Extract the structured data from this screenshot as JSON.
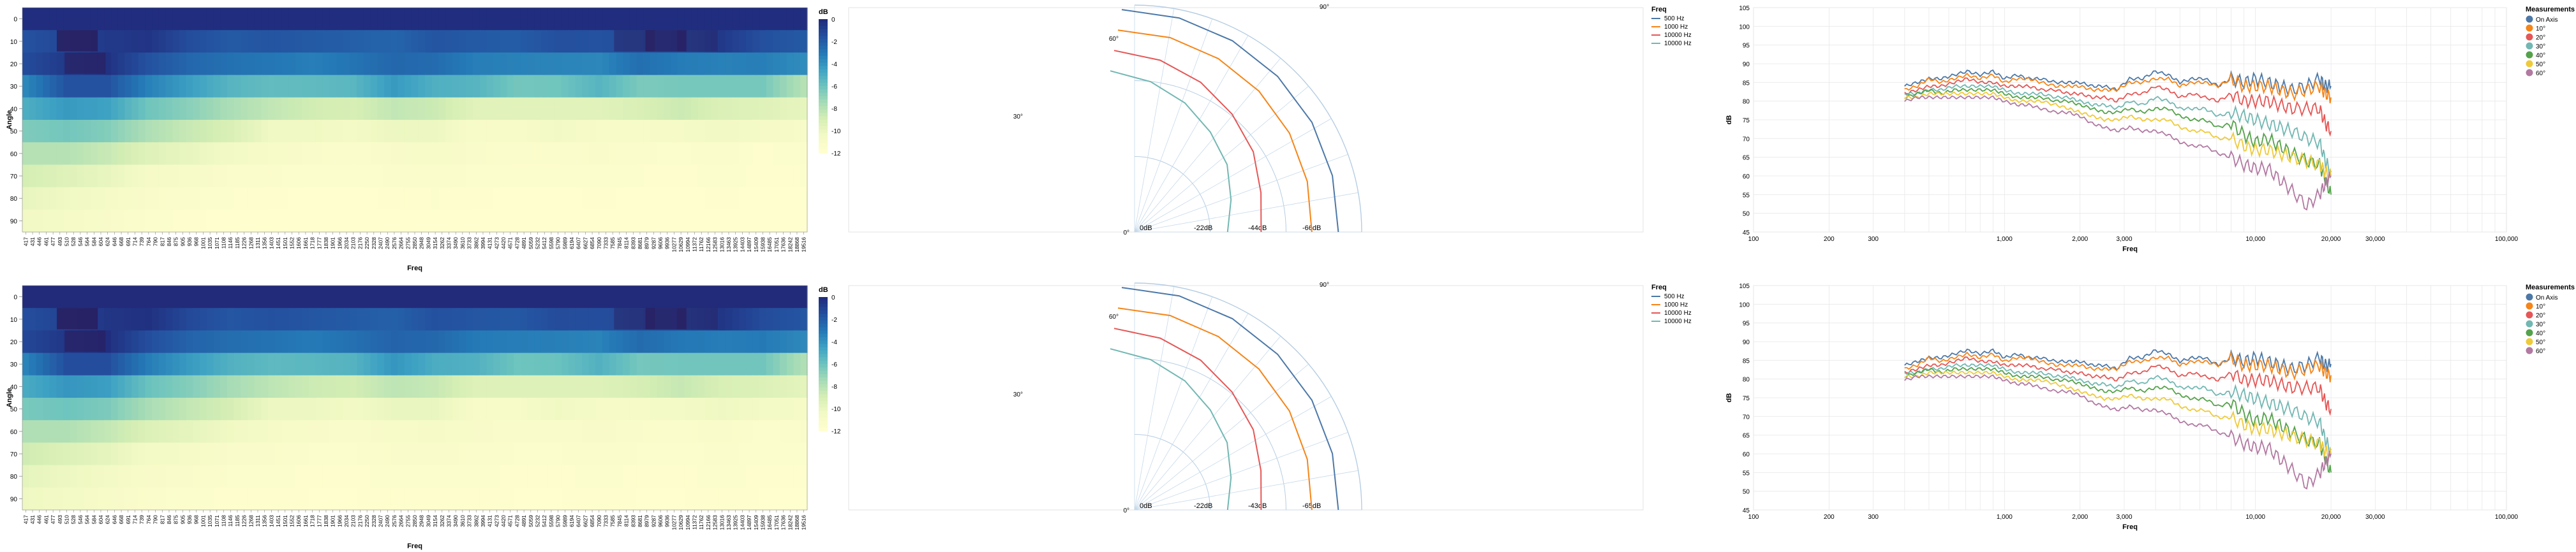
{
  "colors": {
    "heat": [
      "#fffecf",
      "#f2f9c4",
      "#d5eeb4",
      "#a5dbb6",
      "#6cc3be",
      "#3ea2c3",
      "#2479b6",
      "#2452a0",
      "#212d7e",
      "#2a1a5a"
    ],
    "series": [
      "#4c78a8",
      "#f58518",
      "#e45756",
      "#72b7b2",
      "#54a24b",
      "#eeca3b",
      "#b279a2"
    ]
  },
  "charts": [
    {
      "heatmap": {
        "ylabel": "Angle",
        "xlabel": "Freq",
        "y_ticks": [
          "0",
          "10",
          "20",
          "30",
          "40",
          "50",
          "60",
          "70",
          "80",
          "90"
        ],
        "legend_title": "dB",
        "legend_ticks": [
          "0",
          "-2",
          "-4",
          "-6",
          "-8",
          "-10",
          "-12"
        ]
      },
      "polar": {
        "angle_labels": [
          "0°",
          "30°",
          "60°",
          "90°"
        ],
        "radius_labels": [
          "0dB",
          "-22dB",
          "-44dB",
          "-66dB"
        ],
        "legend_title": "Freq",
        "legend_items": [
          "500 Hz",
          "1000 Hz",
          "10000 Hz",
          "10000 Hz"
        ]
      },
      "lines": {
        "ylabel": "dB",
        "xlabel": "Freq",
        "y_ticks": [
          "45",
          "50",
          "55",
          "60",
          "65",
          "70",
          "75",
          "80",
          "85",
          "90",
          "95",
          "100",
          "105"
        ],
        "x_ticks": [
          "100",
          "200",
          "300",
          "1,000",
          "2,000",
          "3,000",
          "10,000",
          "20,000",
          "30,000",
          "100,000"
        ],
        "legend_title": "Measurements",
        "legend_items": [
          "On Axis",
          "10°",
          "20°",
          "30°",
          "40°",
          "50°",
          "60°"
        ]
      }
    },
    {
      "heatmap": {
        "ylabel": "Angle",
        "xlabel": "Freq",
        "y_ticks": [
          "0",
          "10",
          "20",
          "30",
          "40",
          "50",
          "60",
          "70",
          "80",
          "90"
        ],
        "legend_title": "dB",
        "legend_ticks": [
          "0",
          "-2",
          "-4",
          "-6",
          "-8",
          "-10",
          "-12"
        ]
      },
      "polar": {
        "angle_labels": [
          "0°",
          "30°",
          "60°",
          "90°"
        ],
        "radius_labels": [
          "0dB",
          "-22dB",
          "-43dB",
          "-65dB"
        ],
        "legend_title": "Freq",
        "legend_items": [
          "500 Hz",
          "1000 Hz",
          "10000 Hz",
          "10000 Hz"
        ]
      },
      "lines": {
        "ylabel": "dB",
        "xlabel": "Freq",
        "y_ticks": [
          "45",
          "50",
          "55",
          "60",
          "65",
          "70",
          "75",
          "80",
          "85",
          "90",
          "95",
          "100",
          "105"
        ],
        "x_ticks": [
          "100",
          "200",
          "300",
          "1,000",
          "2,000",
          "3,000",
          "10,000",
          "20,000",
          "30,000",
          "100,000"
        ],
        "legend_title": "Measurements",
        "legend_items": [
          "On Axis",
          "10°",
          "20°",
          "30°",
          "40°",
          "50°",
          "60°"
        ]
      }
    }
  ],
  "chart_data": [
    {
      "type": "heatmap",
      "title": "",
      "xlabel": "Freq",
      "ylabel": "Angle",
      "y": [
        0,
        10,
        20,
        30,
        40,
        50,
        60,
        70,
        80,
        90
      ],
      "x_ticks": [
        "417",
        "431",
        "446",
        "461",
        "477",
        "493",
        "510",
        "528",
        "546",
        "564",
        "584",
        "604",
        "624",
        "646",
        "668",
        "691",
        "714",
        "739",
        "764",
        "790",
        "817",
        "846",
        "875",
        "905",
        "936",
        "968",
        "1001",
        "1035",
        "1071",
        "1108",
        "1146",
        "1185",
        "1226",
        "1268",
        "1311",
        "1356",
        "1403",
        "1451",
        "1501",
        "1552",
        "1606",
        "1661",
        "1718",
        "1777",
        "1838",
        "1901",
        "1966",
        "2034",
        "2103",
        "2176",
        "2250",
        "2328",
        "2407",
        "2490",
        "2576",
        "2664",
        "2755",
        "2850",
        "2948",
        "3049",
        "3154",
        "3262",
        "3374",
        "3490",
        "3610",
        "3733",
        "3862",
        "3994",
        "4131",
        "4273",
        "4420",
        "4571",
        "4728",
        "4891",
        "5059",
        "5232",
        "5412",
        "5598",
        "5790",
        "5989",
        "6194",
        "6407",
        "6627",
        "6854",
        "7090",
        "7333",
        "7585",
        "7845",
        "8114",
        "8393",
        "8681",
        "8979",
        "9287",
        "9606",
        "9936",
        "10277",
        "10629",
        "10994",
        "11372",
        "11762",
        "12166",
        "12583",
        "13016",
        "13463",
        "13925",
        "14403",
        "14897",
        "15409",
        "15938",
        "16485",
        "17051",
        "17636",
        "18242",
        "18868",
        "19516"
      ],
      "value_range": [
        -12,
        0
      ],
      "legend_title": "dB",
      "values_description_rows": [
        [
          0,
          0,
          0,
          0,
          0,
          0,
          0,
          0,
          0,
          0,
          0,
          0,
          0,
          0,
          0,
          0,
          0,
          0,
          0,
          0
        ],
        [
          -1.5,
          -1,
          -0.5,
          -0.3,
          -1.3,
          -1.8,
          -1.6,
          -1.8,
          -2,
          -2.2,
          -1.6,
          -1.8,
          -1.9,
          -1.4,
          -1.5,
          -1.2,
          -1,
          -0.5,
          -1.4,
          -1.8
        ],
        [
          -1.2,
          -0.5,
          -0.2,
          -1.5,
          -2.3,
          -2.7,
          -2.9,
          -3.2,
          -2.8,
          -2.3,
          -2.5,
          -3.2,
          -3.3,
          -3.4,
          -3.5,
          -2.6,
          -3.1,
          -3.3,
          -3.2,
          -3.7
        ],
        [
          -3.5,
          -1.5,
          -1.5,
          -3.3,
          -4.4,
          -5.3,
          -5.7,
          -5.6,
          -5.4,
          -4.2,
          -5.1,
          -5.3,
          -6.2,
          -6.1,
          -5.3,
          -6.4,
          -6.3,
          -6.3,
          -6.3,
          -8
        ],
        [
          -5,
          -4.2,
          -4.5,
          -6.1,
          -6.8,
          -7.7,
          -8.4,
          -8.9,
          -9.1,
          -8.4,
          -8.7,
          -9.6,
          -9.6,
          -9.6,
          -9.6,
          -9.2,
          -8.7,
          -9.3,
          -9.5,
          -9.9
        ],
        [
          -6.5,
          -6.2,
          -6.6,
          -7.8,
          -8.6,
          -9.2,
          -10.4,
          -10.4,
          -10.7,
          -10.2,
          -10.2,
          -11.1,
          -11.1,
          -10.6,
          -11,
          -11,
          -10.8,
          -10.5,
          -10.8,
          -11
        ],
        [
          -8,
          -8,
          -8.6,
          -9.5,
          -10,
          -10.6,
          -11,
          -11.3,
          -11.5,
          -11.2,
          -11,
          -11.3,
          -11.5,
          -11.5,
          -11.3,
          -11.5,
          -11.6,
          -11.4,
          -11.8,
          -11.5
        ],
        [
          -9,
          -9.5,
          -10,
          -10.8,
          -11,
          -11.4,
          -11.5,
          -11.7,
          -11.7,
          -11.5,
          -11.4,
          -11.6,
          -11.7,
          -11.7,
          -11.6,
          -11.7,
          -11.8,
          -11.6,
          -11.8,
          -11.7
        ],
        [
          -10,
          -10.4,
          -10.8,
          -11.3,
          -11.5,
          -11.7,
          -11.8,
          -11.9,
          -11.9,
          -11.8,
          -11.7,
          -11.8,
          -11.9,
          -11.9,
          -11.8,
          -11.9,
          -11.9,
          -11.8,
          -11.9,
          -11.9
        ],
        [
          -10.5,
          -10.8,
          -11.2,
          -11.6,
          -11.8,
          -11.9,
          -11.9,
          -12,
          -12,
          -11.9,
          -11.9,
          -11.9,
          -12,
          -12,
          -11.9,
          -12,
          -12,
          -11.9,
          -12,
          -12
        ]
      ]
    },
    {
      "type": "line",
      "subtype": "polar",
      "title": "",
      "legend_title": "Freq",
      "series": [
        {
          "name": "500 Hz",
          "values": [
            0,
            -0.5,
            -1,
            -1.5,
            -2,
            -3,
            -4
          ]
        },
        {
          "name": "1000 Hz",
          "values": [
            0,
            -0.5,
            -1.2,
            -2,
            -3,
            -4.5,
            -6
          ]
        },
        {
          "name": "10000 Hz",
          "values": [
            0,
            -3,
            -7,
            -12,
            -17,
            -24,
            -28
          ]
        },
        {
          "name": "10000 Hz",
          "values": [
            0,
            -5,
            -11,
            -18,
            -24,
            -33,
            -40
          ]
        }
      ],
      "angles": [
        0,
        15,
        30,
        45,
        60,
        75,
        90
      ],
      "radius_range": [
        -66,
        0
      ]
    },
    {
      "type": "line",
      "title": "",
      "xlabel": "Freq",
      "ylabel": "dB",
      "xscale": "log",
      "xlim": [
        100,
        100000
      ],
      "ylim": [
        45,
        105
      ],
      "legend_title": "Measurements",
      "legend_placement": "right",
      "x": [
        400,
        450,
        500,
        560,
        630,
        710,
        800,
        900,
        1000,
        1120,
        1250,
        1400,
        1600,
        1800,
        2000,
        2240,
        2500,
        2800,
        3150,
        3550,
        4000,
        4500,
        5000,
        5600,
        6300,
        7100,
        8000,
        9000,
        10000,
        11200,
        12500,
        14000,
        16000,
        18000,
        19000,
        20000
      ],
      "series": [
        {
          "name": "On Axis",
          "values": [
            84,
            85,
            86,
            86,
            87,
            88,
            87,
            88,
            86,
            87,
            86,
            86,
            85,
            85,
            85,
            84,
            84,
            83,
            86,
            86,
            88,
            87,
            85,
            86,
            86,
            84,
            86,
            85,
            86,
            85,
            84,
            83,
            84,
            86,
            84,
            84
          ]
        },
        {
          "name": "10°",
          "values": [
            83,
            84,
            86,
            85,
            86,
            87,
            86,
            87,
            85,
            86,
            86,
            85,
            84,
            84,
            84,
            83,
            83,
            83,
            85,
            85,
            86,
            86,
            84,
            85,
            85,
            84,
            86,
            84,
            84,
            84,
            83,
            82,
            83,
            84,
            82,
            81
          ]
        },
        {
          "name": "20°",
          "values": [
            82,
            83,
            84,
            84,
            85,
            86,
            85,
            85,
            84,
            84,
            84,
            83,
            83,
            82,
            82,
            81,
            81,
            80,
            82,
            82,
            84,
            83,
            81,
            82,
            81,
            80,
            82,
            80,
            80,
            80,
            79,
            78,
            78,
            78,
            74,
            72
          ]
        },
        {
          "name": "30°",
          "values": [
            82,
            82,
            83,
            83,
            84,
            84,
            84,
            84,
            83,
            82,
            82,
            82,
            81,
            81,
            80,
            79,
            79,
            78,
            80,
            79,
            81,
            80,
            78,
            78,
            78,
            76,
            77,
            76,
            75,
            74,
            73,
            72,
            70,
            69,
            64,
            61
          ]
        },
        {
          "name": "40°",
          "values": [
            81,
            82,
            83,
            82,
            83,
            83,
            83,
            83,
            82,
            81,
            81,
            81,
            80,
            80,
            79,
            78,
            77,
            77,
            78,
            77,
            78,
            78,
            76,
            75,
            75,
            73,
            74,
            71,
            69,
            70,
            68,
            66,
            64,
            63,
            59,
            55
          ]
        },
        {
          "name": "50°",
          "values": [
            81,
            81,
            82,
            82,
            82,
            82,
            82,
            82,
            81,
            80,
            80,
            80,
            79,
            78,
            77,
            76,
            75,
            75,
            76,
            75,
            75,
            75,
            73,
            72,
            72,
            70,
            70,
            68,
            67,
            67,
            66,
            65,
            64,
            63,
            61,
            60
          ]
        },
        {
          "name": "60°",
          "values": [
            80,
            81,
            81,
            81,
            81,
            81,
            81,
            81,
            80,
            79,
            79,
            78,
            77,
            77,
            76,
            74,
            73,
            72,
            73,
            72,
            72,
            71,
            69,
            68,
            68,
            66,
            65,
            63,
            62,
            62,
            59,
            56,
            52,
            55,
            58,
            60
          ]
        }
      ]
    }
  ]
}
